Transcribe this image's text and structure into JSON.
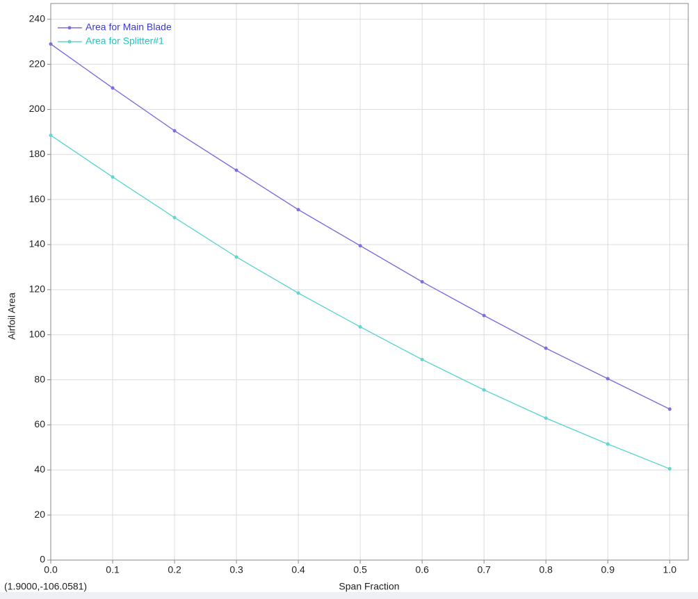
{
  "chart_data": {
    "type": "line",
    "xlabel": "Span Fraction",
    "ylabel": "Airfoil Area",
    "annotation": "(1.9000,-106.0581)",
    "x": [
      0,
      0.1,
      0.2,
      0.3,
      0.4,
      0.5,
      0.6,
      0.7,
      0.8,
      0.9,
      1.0
    ],
    "series": [
      {
        "name": "Area for Main Blade",
        "color": "#7b6fe0",
        "text_color": "#3a3ad0",
        "values": [
          229,
          209.5,
          190.5,
          173,
          155.5,
          139.5,
          123.5,
          108.5,
          94,
          80.5,
          67
        ]
      },
      {
        "name": "Area for Splitter#1",
        "color": "#5fd6d0",
        "text_color": "#22c4c0",
        "values": [
          188.5,
          170,
          152,
          134.5,
          118.5,
          103.5,
          89,
          75.5,
          63,
          51.5,
          40.5
        ]
      }
    ],
    "xlim": [
      0,
      1.03
    ],
    "ylim": [
      0,
      247
    ],
    "xticks": [
      {
        "value": 0,
        "label": "0.0"
      },
      0.1,
      0.2,
      0.3,
      0.4,
      0.5,
      0.6,
      0.7,
      0.8,
      0.9,
      {
        "value": 1,
        "label": "1.0"
      }
    ],
    "yticks": [
      0,
      20,
      40,
      60,
      80,
      100,
      120,
      140,
      160,
      180,
      200,
      220,
      240
    ],
    "grid": true,
    "legend": "top-left"
  }
}
